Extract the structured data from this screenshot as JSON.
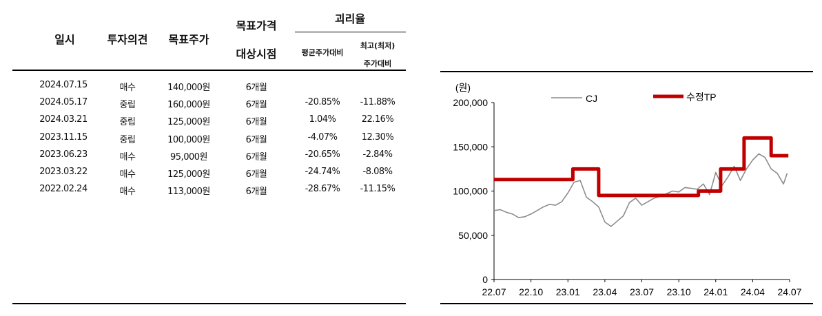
{
  "table": {
    "headers": {
      "date": "일시",
      "opinion": "투자의견",
      "target": "목표주가",
      "period_line1": "목표가격",
      "period_line2": "대상시점",
      "gap": "괴리율",
      "avg": "평균주가대비",
      "hilo_line1": "최고(최저)",
      "hilo_line2": "주가대비"
    },
    "rows": [
      {
        "date": "2024.07.15",
        "opinion": "매수",
        "target": "140,000원",
        "period": "6개월",
        "avg": "",
        "hilo": ""
      },
      {
        "date": "2024.05.17",
        "opinion": "중립",
        "target": "160,000원",
        "period": "6개월",
        "avg": "-20.85%",
        "hilo": "-11.88%"
      },
      {
        "date": "2024.03.21",
        "opinion": "중립",
        "target": "125,000원",
        "period": "6개월",
        "avg": "1.04%",
        "hilo": "22.16%"
      },
      {
        "date": "2023.11.15",
        "opinion": "중립",
        "target": "100,000원",
        "period": "6개월",
        "avg": "-4.07%",
        "hilo": "12.30%"
      },
      {
        "date": "2023.06.23",
        "opinion": "매수",
        "target": "95,000원",
        "period": "6개월",
        "avg": "-20.65%",
        "hilo": "-2.84%"
      },
      {
        "date": "2023.03.22",
        "opinion": "매수",
        "target": "125,000원",
        "period": "6개월",
        "avg": "-24.74%",
        "hilo": "-8.08%"
      },
      {
        "date": "2022.02.24",
        "opinion": "매수",
        "target": "113,000원",
        "period": "6개월",
        "avg": "-28.67%",
        "hilo": "-11.15%"
      }
    ]
  },
  "chart_data": {
    "type": "line",
    "unit_label": "(원)",
    "ylim": [
      0,
      200000
    ],
    "yticks": [
      "0",
      "50,000",
      "100,000",
      "150,000",
      "200,000"
    ],
    "yticks_values": [
      0,
      50000,
      100000,
      150000,
      200000
    ],
    "xticks": [
      "22.07",
      "22.10",
      "23.01",
      "23.04",
      "23.07",
      "23.10",
      "24.01",
      "24.04",
      "24.07"
    ],
    "xlim_months": [
      0,
      24
    ],
    "legend_position": "top",
    "series": [
      {
        "name": "CJ",
        "color": "#8c8c8c",
        "x": [
          0,
          0.5,
          1,
          1.5,
          2,
          2.5,
          3,
          3.5,
          4,
          4.5,
          5,
          5.5,
          6,
          6.5,
          7,
          7.5,
          8,
          8.5,
          9,
          9.5,
          10,
          10.5,
          11,
          11.5,
          12,
          12.5,
          13,
          13.5,
          14,
          14.5,
          15,
          15.5,
          16,
          16.5,
          17,
          17.5,
          18,
          18.5,
          19,
          19.5,
          20,
          20.5,
          21,
          21.5,
          22,
          22.5,
          23,
          23.5,
          23.8
        ],
        "values": [
          78000,
          79000,
          76000,
          74000,
          70000,
          71000,
          74000,
          78000,
          82000,
          85000,
          84000,
          88000,
          98000,
          110000,
          112000,
          93000,
          88000,
          82000,
          65000,
          60000,
          66000,
          72000,
          87000,
          92000,
          84000,
          88000,
          92000,
          94000,
          97000,
          100000,
          99000,
          104000,
          103000,
          102000,
          108000,
          96000,
          121000,
          106000,
          116000,
          128000,
          112000,
          125000,
          135000,
          142000,
          138000,
          125000,
          120000,
          108000,
          120000
        ]
      },
      {
        "name": "수정TP",
        "color": "#c00000",
        "x": [
          0,
          6.4,
          6.4,
          8.5,
          8.5,
          12.6,
          12.6,
          16.6,
          16.6,
          18.4,
          18.4,
          20.3,
          20.3,
          22.5,
          22.5,
          23.9
        ],
        "values": [
          113000,
          113000,
          125000,
          125000,
          95000,
          95000,
          95000,
          95000,
          100000,
          100000,
          125000,
          125000,
          160000,
          160000,
          140000,
          140000
        ]
      }
    ]
  }
}
